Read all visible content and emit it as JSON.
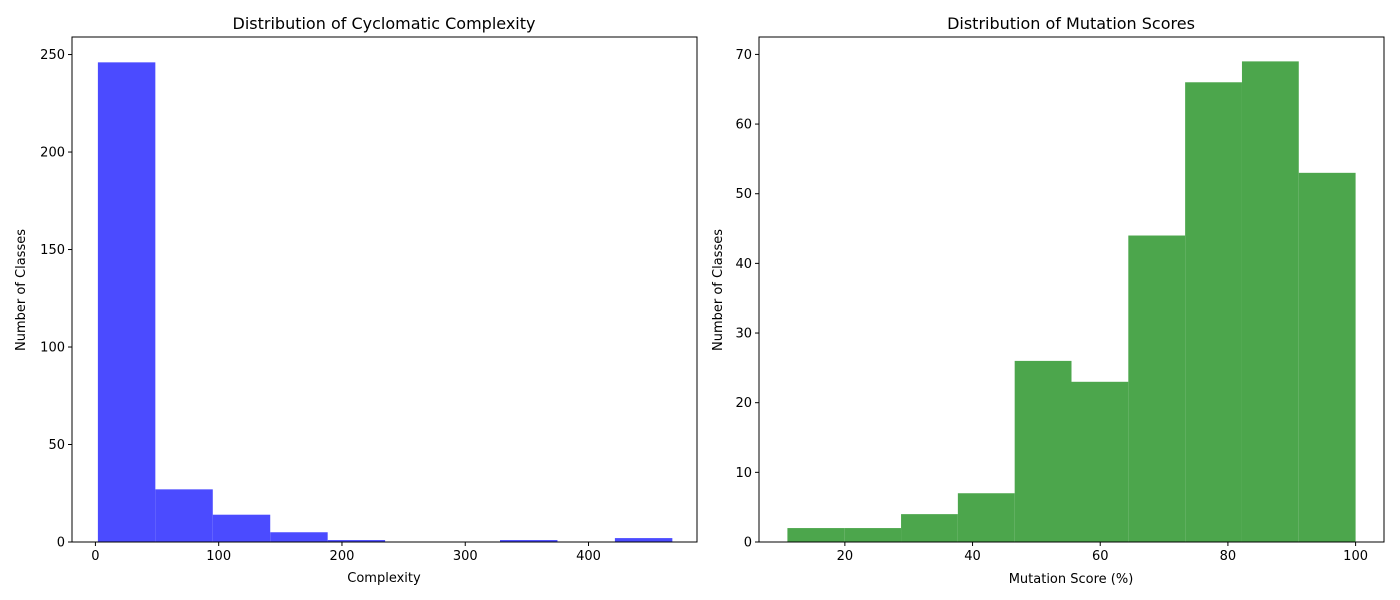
{
  "chart_data": [
    {
      "type": "bar",
      "subtype": "histogram",
      "title": "Distribution of Cyclomatic Complexity",
      "xlabel": "Complexity",
      "ylabel": "Number of Classes",
      "color": "#4b4bff",
      "xlim": [
        -19,
        488
      ],
      "ylim": [
        0,
        259
      ],
      "xticks": [
        0,
        100,
        200,
        300,
        400
      ],
      "yticks": [
        0,
        50,
        100,
        150,
        200,
        250
      ],
      "bin_edges": [
        2,
        48.6,
        95.2,
        141.8,
        188.4,
        235,
        281.6,
        328.2,
        374.8,
        421.4,
        468
      ],
      "values": [
        246,
        27,
        14,
        5,
        1,
        0,
        0,
        1,
        0,
        2
      ],
      "grid": false
    },
    {
      "type": "bar",
      "subtype": "histogram",
      "title": "Distribution of Mutation Scores",
      "xlabel": "Mutation Score (%)",
      "ylabel": "Number of Classes",
      "color": "#4ca64c",
      "xlim": [
        6.55,
        104.45
      ],
      "ylim": [
        0,
        72.5
      ],
      "xticks": [
        20,
        40,
        60,
        80,
        100
      ],
      "yticks": [
        0,
        10,
        20,
        30,
        40,
        50,
        60,
        70
      ],
      "bin_edges": [
        11,
        19.9,
        28.8,
        37.7,
        46.6,
        55.5,
        64.4,
        73.3,
        82.2,
        91.1,
        100
      ],
      "values": [
        2,
        2,
        4,
        7,
        26,
        23,
        44,
        66,
        69,
        53
      ],
      "grid": false
    }
  ]
}
